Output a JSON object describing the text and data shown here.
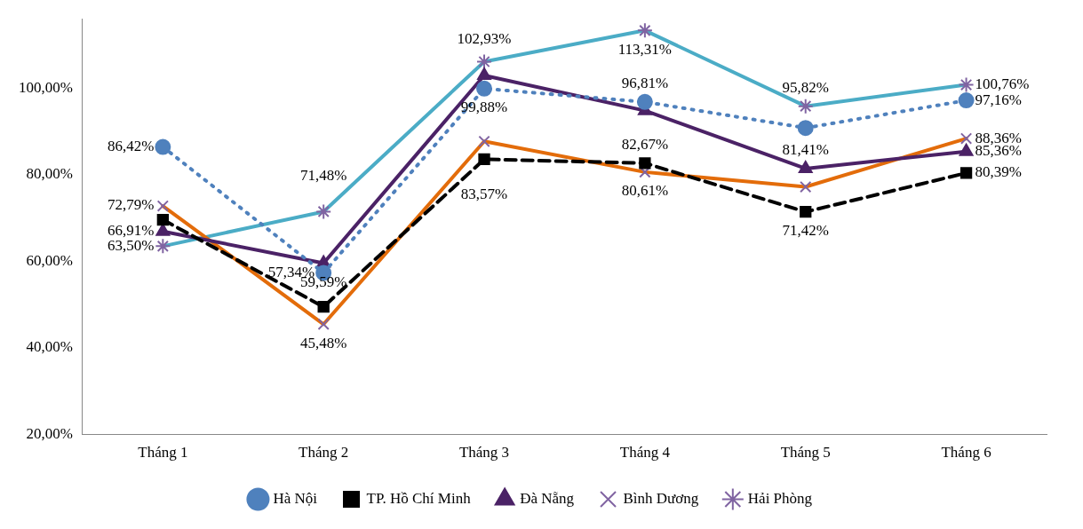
{
  "chart_data": {
    "type": "line",
    "categories": [
      "Tháng 1",
      "Tháng 2",
      "Tháng 3",
      "Tháng 4",
      "Tháng 5",
      "Tháng 6"
    ],
    "ylim": [
      20,
      116
    ],
    "yticks": [
      {
        "value": 20,
        "label": "20,00%"
      },
      {
        "value": 40,
        "label": "40,00%"
      },
      {
        "value": 60,
        "label": "60,00%"
      },
      {
        "value": 80,
        "label": "80,00%"
      },
      {
        "value": 100,
        "label": "100,00%"
      }
    ],
    "grid": false,
    "legend": "bottom",
    "series": [
      {
        "name": "Hà Nội",
        "color": "#4f81bd",
        "marker": "circle",
        "line_style": "dotted",
        "values": [
          86.42,
          57.34,
          99.88,
          96.81,
          90.8,
          97.16
        ],
        "value_labels": [
          "86,42%",
          "57,34%",
          "99,88%",
          "96,81%",
          null,
          "97,16%"
        ]
      },
      {
        "name": "TP. Hồ Chí Minh",
        "color": "#000000",
        "marker": "square",
        "line_style": "dashed",
        "values": [
          69.6,
          49.5,
          83.57,
          82.67,
          71.42,
          80.39
        ],
        "value_labels": [
          null,
          null,
          "83,57%",
          "82,67%",
          "71,42%",
          "80,39%"
        ]
      },
      {
        "name": "Đà Nẵng",
        "color": "#4b2266",
        "marker": "triangle",
        "line_style": "solid",
        "values": [
          66.91,
          59.59,
          102.93,
          94.8,
          81.41,
          85.36
        ],
        "value_labels": [
          "66,91%",
          "59,59%",
          "102,93%",
          null,
          "81,41%",
          "85,36%"
        ]
      },
      {
        "name": "Bình Dương",
        "color": "#e36c0a",
        "marker": "cross",
        "line_style": "solid",
        "values": [
          72.79,
          45.48,
          87.7,
          80.61,
          77.2,
          88.36
        ],
        "value_labels": [
          "72,79%",
          "45,48%",
          null,
          "80,61%",
          null,
          "88,36%"
        ]
      },
      {
        "name": "Hải Phòng",
        "color": "#4bacc6",
        "marker": "cross",
        "line_style": "solid",
        "values": [
          63.5,
          71.48,
          106.1,
          113.31,
          95.82,
          100.76
        ],
        "value_labels": [
          "63,50%",
          "71,48%",
          null,
          "113,31%",
          "95,82%",
          "100,76%"
        ]
      }
    ]
  }
}
